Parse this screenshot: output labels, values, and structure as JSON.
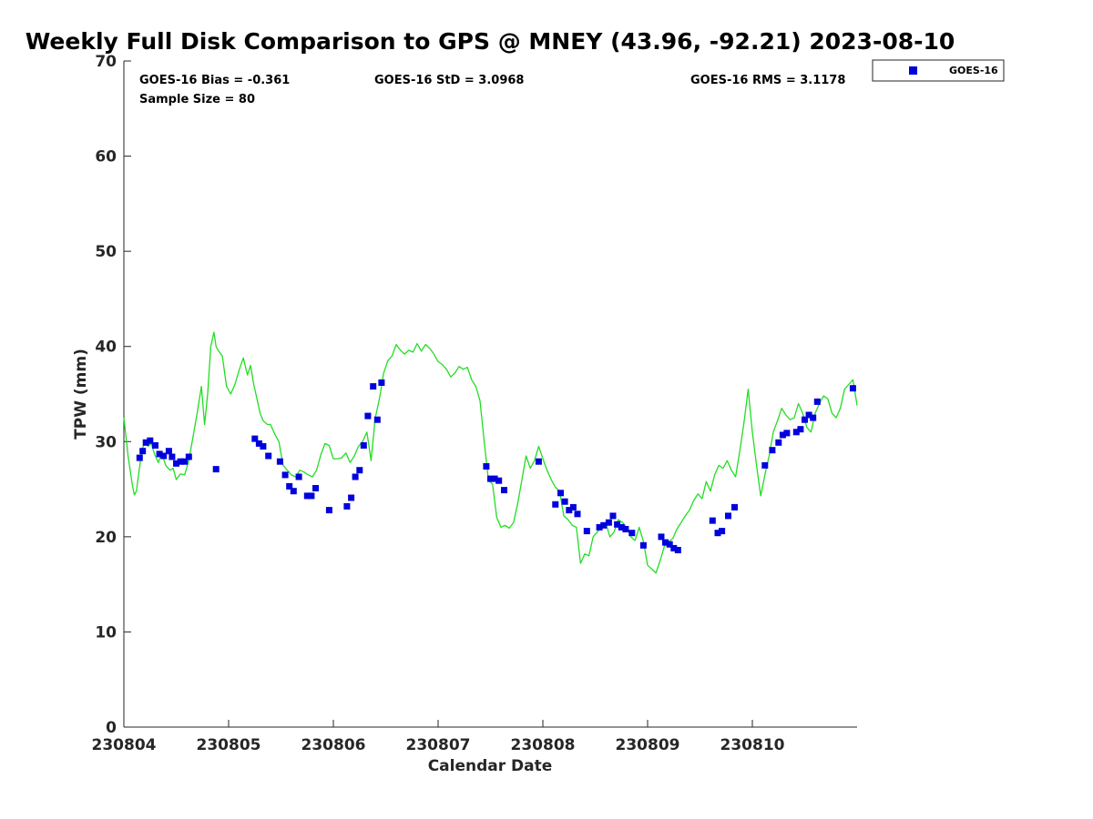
{
  "chart_data": {
    "type": "scatter",
    "title": "Weekly Full Disk Comparison to GPS @ MNEY (43.96, -92.21) 2023-08-10",
    "xlabel": "Calendar Date",
    "ylabel": "TPW (mm)",
    "xlim": [
      0,
      7
    ],
    "ylim": [
      0,
      70
    ],
    "x_unit": "days since 230804",
    "x_tick_values": [
      0,
      1,
      2,
      3,
      4,
      5,
      6
    ],
    "x_tick_labels": [
      "230804",
      "230805",
      "230806",
      "230807",
      "230808",
      "230809",
      "230810"
    ],
    "y_ticks": [
      0,
      10,
      20,
      30,
      40,
      50,
      60,
      70
    ],
    "stats": {
      "bias": "GOES-16 Bias = -0.361",
      "std": "GOES-16 StD = 3.0968",
      "rms": "GOES-16 RMS = 3.1178",
      "sample": "Sample Size = 80"
    },
    "legend": {
      "position": "top-right",
      "entries": [
        "GOES-16"
      ]
    },
    "colors": {
      "goes16": "#0000dd",
      "gps_line": "#22dd22"
    },
    "series": [
      {
        "name": "GOES-16",
        "kind": "scatter",
        "x": [
          0.15,
          0.18,
          0.21,
          0.25,
          0.3,
          0.34,
          0.38,
          0.43,
          0.46,
          0.5,
          0.54,
          0.58,
          0.62,
          0.88,
          1.25,
          1.29,
          1.33,
          1.38,
          1.49,
          1.54,
          1.58,
          1.62,
          1.67,
          1.75,
          1.79,
          1.83,
          1.96,
          2.13,
          2.17,
          2.21,
          2.25,
          2.29,
          2.33,
          2.38,
          2.42,
          2.46,
          3.46,
          3.5,
          3.54,
          3.58,
          3.63,
          3.96,
          4.12,
          4.17,
          4.21,
          4.25,
          4.29,
          4.33,
          4.42,
          4.54,
          4.58,
          4.63,
          4.67,
          4.71,
          4.75,
          4.79,
          4.85,
          4.96,
          5.13,
          5.17,
          5.21,
          5.25,
          5.29,
          5.62,
          5.67,
          5.71,
          5.77,
          5.83,
          6.12,
          6.19,
          6.25,
          6.29,
          6.33,
          6.42,
          6.46,
          6.5,
          6.54,
          6.58,
          6.62,
          6.96
        ],
        "y": [
          28.3,
          29.0,
          29.9,
          30.1,
          29.6,
          28.7,
          28.5,
          29.0,
          28.4,
          27.7,
          27.9,
          27.9,
          28.4,
          27.1,
          30.3,
          29.8,
          29.5,
          28.5,
          27.9,
          26.5,
          25.3,
          24.8,
          26.3,
          24.3,
          24.3,
          25.1,
          22.8,
          23.2,
          24.1,
          26.3,
          27.0,
          29.6,
          32.7,
          35.8,
          32.3,
          36.2,
          27.4,
          26.1,
          26.1,
          25.9,
          24.9,
          27.9,
          23.4,
          24.6,
          23.7,
          22.8,
          23.1,
          22.4,
          20.6,
          21.0,
          21.2,
          21.5,
          22.2,
          21.3,
          21.0,
          20.8,
          20.4,
          19.1,
          20.0,
          19.4,
          19.2,
          18.8,
          18.6,
          21.7,
          20.4,
          20.6,
          22.2,
          23.1,
          27.5,
          29.1,
          29.9,
          30.7,
          30.9,
          31.0,
          31.3,
          32.3,
          32.8,
          32.5,
          34.2,
          35.6
        ]
      },
      {
        "kind": "line",
        "x": [
          0.0,
          0.04,
          0.08,
          0.1,
          0.12,
          0.14,
          0.17,
          0.2,
          0.23,
          0.26,
          0.3,
          0.33,
          0.36,
          0.4,
          0.44,
          0.47,
          0.5,
          0.54,
          0.58,
          0.62,
          0.66,
          0.7,
          0.74,
          0.77,
          0.8,
          0.83,
          0.86,
          0.88,
          0.9,
          0.94,
          0.98,
          1.02,
          1.06,
          1.1,
          1.14,
          1.18,
          1.21,
          1.24,
          1.27,
          1.3,
          1.33,
          1.37,
          1.4,
          1.44,
          1.48,
          1.52,
          1.56,
          1.6,
          1.64,
          1.68,
          1.72,
          1.76,
          1.8,
          1.84,
          1.88,
          1.92,
          1.96,
          2.0,
          2.04,
          2.08,
          2.12,
          2.16,
          2.2,
          2.24,
          2.28,
          2.32,
          2.36,
          2.4,
          2.44,
          2.48,
          2.52,
          2.56,
          2.6,
          2.64,
          2.68,
          2.72,
          2.76,
          2.8,
          2.84,
          2.88,
          2.92,
          2.96,
          3.0,
          3.04,
          3.08,
          3.12,
          3.16,
          3.2,
          3.24,
          3.28,
          3.32,
          3.36,
          3.4,
          3.44,
          3.48,
          3.52,
          3.56,
          3.6,
          3.64,
          3.68,
          3.72,
          3.76,
          3.8,
          3.84,
          3.88,
          3.92,
          3.96,
          4.0,
          4.04,
          4.08,
          4.12,
          4.16,
          4.2,
          4.24,
          4.28,
          4.32,
          4.36,
          4.4,
          4.44,
          4.48,
          4.52,
          4.56,
          4.6,
          4.64,
          4.68,
          4.72,
          4.76,
          4.8,
          4.84,
          4.88,
          4.92,
          4.96,
          5.0,
          5.04,
          5.08,
          5.12,
          5.16,
          5.2,
          5.24,
          5.28,
          5.32,
          5.36,
          5.4,
          5.44,
          5.48,
          5.52,
          5.56,
          5.6,
          5.64,
          5.68,
          5.72,
          5.76,
          5.8,
          5.84,
          5.88,
          5.92,
          5.96,
          6.0,
          6.04,
          6.08,
          6.12,
          6.16,
          6.2,
          6.24,
          6.28,
          6.32,
          6.36,
          6.4,
          6.44,
          6.48,
          6.52,
          6.56,
          6.6,
          6.64,
          6.68,
          6.72,
          6.76,
          6.8,
          6.84,
          6.88,
          6.92,
          6.96,
          7.0
        ],
        "y": [
          32.5,
          28.5,
          25.5,
          24.4,
          24.8,
          26.5,
          29.0,
          30.0,
          29.5,
          29.8,
          28.5,
          27.8,
          28.8,
          27.5,
          27.0,
          27.2,
          26.0,
          26.6,
          26.5,
          28.0,
          30.5,
          33.0,
          35.8,
          31.8,
          35.0,
          40.0,
          41.5,
          40.0,
          39.6,
          39.0,
          35.8,
          35.0,
          36.0,
          37.5,
          38.8,
          37.0,
          38.0,
          36.0,
          34.5,
          33.0,
          32.2,
          31.8,
          31.8,
          30.8,
          30.0,
          27.5,
          27.0,
          26.5,
          26.3,
          27.0,
          26.8,
          26.5,
          26.3,
          27.0,
          28.6,
          29.8,
          29.6,
          28.2,
          28.2,
          28.3,
          28.8,
          27.8,
          28.5,
          29.5,
          30.0,
          31.0,
          28.0,
          32.5,
          34.5,
          37.2,
          38.5,
          39.0,
          40.2,
          39.6,
          39.2,
          39.6,
          39.4,
          40.3,
          39.5,
          40.2,
          39.8,
          39.2,
          38.4,
          38.1,
          37.6,
          36.8,
          37.2,
          37.9,
          37.6,
          37.8,
          36.5,
          35.8,
          34.3,
          30.0,
          26.0,
          25.5,
          22.0,
          21.0,
          21.2,
          20.9,
          21.5,
          23.5,
          26.0,
          28.5,
          27.2,
          28.0,
          29.5,
          28.2,
          27.0,
          26.0,
          25.2,
          24.8,
          22.2,
          21.8,
          21.2,
          21.0,
          17.2,
          18.2,
          18.0,
          20.0,
          20.5,
          21.0,
          21.5,
          20.0,
          20.5,
          21.8,
          21.5,
          21.0,
          20.0,
          19.6,
          21.0,
          19.5,
          17.0,
          16.6,
          16.2,
          17.5,
          19.0,
          19.5,
          19.8,
          20.8,
          21.5,
          22.2,
          22.8,
          23.8,
          24.5,
          24.0,
          25.8,
          24.8,
          26.5,
          27.5,
          27.2,
          28.0,
          27.0,
          26.3,
          29.0,
          32.0,
          35.5,
          31.0,
          27.5,
          24.3,
          26.5,
          28.5,
          31.0,
          32.2,
          33.5,
          32.8,
          32.3,
          32.5,
          34.0,
          33.0,
          31.5,
          31.0,
          33.0,
          34.0,
          34.8,
          34.5,
          33.0,
          32.5,
          33.5,
          35.5,
          36.0,
          36.5,
          33.8
        ]
      }
    ]
  }
}
